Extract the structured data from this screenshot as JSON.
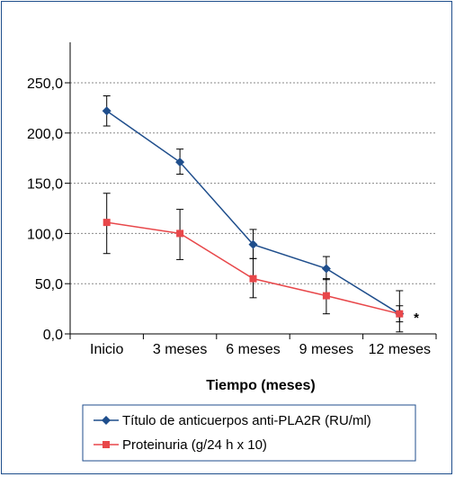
{
  "chart_data": {
    "type": "line",
    "title": "",
    "xlabel": "Tiempo (meses)",
    "ylabel": "",
    "categories": [
      "Inicio",
      "3 meses",
      "6 meses",
      "9 meses",
      "12 meses"
    ],
    "y_ticks": [
      "0,0",
      "50,0",
      "100,0",
      "150,0",
      "200,0",
      "250,0"
    ],
    "ylim": [
      0,
      250
    ],
    "grid": "horizontal dashed",
    "legend_position": "bottom",
    "series": [
      {
        "name": "Título de anticuerpos anti-PLA2R (RU/ml)",
        "color": "#1f4e8c",
        "marker": "diamond",
        "values": [
          222,
          171,
          89,
          65,
          20
        ],
        "error_low": [
          207,
          159,
          75,
          54,
          12
        ],
        "error_high": [
          237,
          184,
          104,
          77,
          28
        ]
      },
      {
        "name": "Proteinuria (g/24 h x 10)",
        "color": "#e8474a",
        "marker": "square",
        "values": [
          111,
          100,
          55,
          38,
          20
        ],
        "error_low": [
          80,
          74,
          36,
          20,
          2
        ],
        "error_high": [
          140,
          124,
          75,
          55,
          43
        ]
      }
    ],
    "annotation": "*"
  }
}
